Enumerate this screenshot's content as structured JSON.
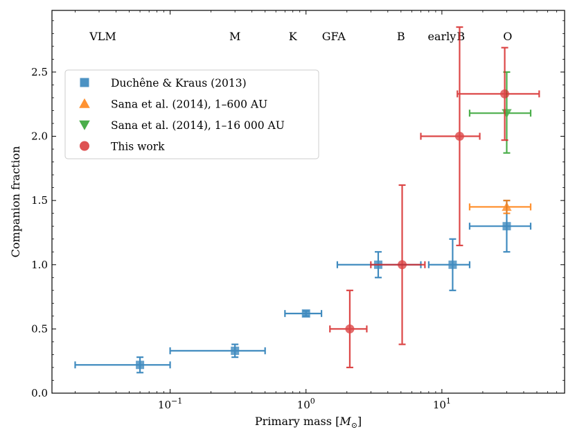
{
  "chart_data": {
    "type": "scatter",
    "title": "",
    "xlabel": "Primary mass [M_⊙]",
    "ylabel": "Companion fraction",
    "xscale": "log",
    "xlim": [
      0.0135,
      80
    ],
    "ylim": [
      0,
      2.98
    ],
    "grid": false,
    "legend_location": "upper-left",
    "x_ticks": [
      {
        "value": 0.1,
        "base": "10",
        "exp": "−1"
      },
      {
        "value": 1,
        "base": "10",
        "exp": "0"
      },
      {
        "value": 10,
        "base": "10",
        "exp": "1"
      }
    ],
    "y_ticks": [
      {
        "value": 0.0,
        "label": "0.0"
      },
      {
        "value": 0.5,
        "label": "0.5"
      },
      {
        "value": 1.0,
        "label": "1.0"
      },
      {
        "value": 1.5,
        "label": "1.5"
      },
      {
        "value": 2.0,
        "label": "2.0"
      },
      {
        "value": 2.5,
        "label": "2.5"
      }
    ],
    "class_labels": [
      {
        "text": "VLM",
        "x": 0.032
      },
      {
        "text": "M",
        "x": 0.3
      },
      {
        "text": "K",
        "x": 0.8
      },
      {
        "text": "GFA",
        "x": 1.6
      },
      {
        "text": "B",
        "x": 5.0
      },
      {
        "text": "early",
        "x": 10.0
      },
      {
        "text": "B",
        "x": 13.8
      },
      {
        "text": "O",
        "x": 30.5
      }
    ],
    "series": [
      {
        "name": "Duchêne & Kraus (2013)",
        "color": "#1f77b4",
        "marker": "square",
        "points": [
          {
            "x": 0.06,
            "y": 0.22,
            "xerr": [
              0.02,
              0.1
            ],
            "yerr": [
              0.16,
              0.28
            ]
          },
          {
            "x": 0.3,
            "y": 0.33,
            "xerr": [
              0.1,
              0.5
            ],
            "yerr": [
              0.28,
              0.38
            ]
          },
          {
            "x": 1.0,
            "y": 0.62,
            "xerr": [
              0.7,
              1.3
            ],
            "yerr": [
              0.6,
              0.64
            ]
          },
          {
            "x": 3.4,
            "y": 1.0,
            "xerr": [
              1.7,
              7.0
            ],
            "yerr": [
              0.9,
              1.1
            ]
          },
          {
            "x": 12.0,
            "y": 1.0,
            "xerr": [
              8.0,
              16.0
            ],
            "yerr": [
              0.8,
              1.2
            ]
          },
          {
            "x": 30.0,
            "y": 1.3,
            "xerr": [
              16.0,
              45.0
            ],
            "yerr": [
              1.1,
              1.5
            ]
          }
        ]
      },
      {
        "name": "Sana et al. (2014), 1–600 AU",
        "color": "#ff7f0e",
        "marker": "triangle-up",
        "points": [
          {
            "x": 30.0,
            "y": 1.45,
            "xerr": [
              16.0,
              45.0
            ],
            "yerr": [
              1.4,
              1.5
            ]
          }
        ]
      },
      {
        "name": "Sana et al. (2014), 1–16 000 AU",
        "color": "#2ca02c",
        "marker": "triangle-down",
        "points": [
          {
            "x": 30.0,
            "y": 2.18,
            "xerr": [
              16.0,
              45.0
            ],
            "yerr": [
              1.87,
              2.5
            ]
          }
        ]
      },
      {
        "name": "This work",
        "color": "#d62728",
        "marker": "circle",
        "points": [
          {
            "x": 2.1,
            "y": 0.5,
            "xerr": [
              1.5,
              2.8
            ],
            "yerr": [
              0.2,
              0.8
            ]
          },
          {
            "x": 5.1,
            "y": 1.0,
            "xerr": [
              3.0,
              7.5
            ],
            "yerr": [
              0.38,
              1.62
            ]
          },
          {
            "x": 13.5,
            "y": 2.0,
            "xerr": [
              7.0,
              19.0
            ],
            "yerr": [
              1.15,
              2.85
            ]
          },
          {
            "x": 29.0,
            "y": 2.33,
            "xerr": [
              13.0,
              52.0
            ],
            "yerr": [
              1.97,
              2.69
            ]
          }
        ]
      }
    ]
  }
}
